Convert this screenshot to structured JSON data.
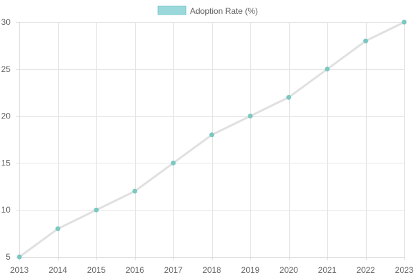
{
  "chart_data": {
    "type": "line",
    "x": [
      "2013",
      "2014",
      "2015",
      "2016",
      "2017",
      "2018",
      "2019",
      "2020",
      "2021",
      "2022",
      "2023"
    ],
    "series": [
      {
        "name": "Adoption Rate (%)",
        "values": [
          5,
          8,
          10,
          12,
          15,
          18,
          20,
          22,
          25,
          28,
          30
        ]
      }
    ],
    "ylim": [
      5,
      30
    ],
    "yticks": [
      "5",
      "10",
      "15",
      "20",
      "25",
      "30"
    ],
    "grid": true,
    "legend": "top-center",
    "colors": {
      "line": "#e0e0e0",
      "points": "#7ac8c0",
      "legend_fill": "#9bd8dc",
      "legend_stroke": "#74c7c8",
      "grid": "#e5e5e5",
      "text": "#666666"
    }
  }
}
